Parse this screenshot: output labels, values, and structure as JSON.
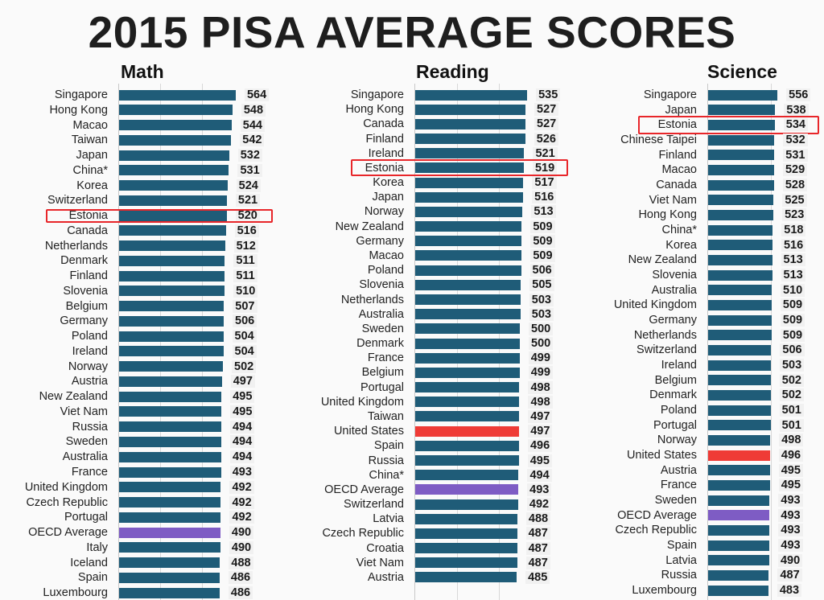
{
  "colors": {
    "bar": "#1f5c78",
    "united_states": "#ef3b36",
    "oecd_average": "#7e5cc4",
    "highlight": "#e8262a"
  },
  "chart_data": [
    {
      "type": "bar",
      "orientation": "horizontal",
      "title": "2015 PISA AVERAGE SCORES",
      "subtitle": "Math",
      "highlight": "Estonia",
      "categories": [
        "Singapore",
        "Hong Kong",
        "Macao",
        "Taiwan",
        "Japan",
        "China*",
        "Korea",
        "Switzerland",
        "Estonia",
        "Canada",
        "Netherlands",
        "Denmark",
        "Finland",
        "Slovenia",
        "Belgium",
        "Germany",
        "Poland",
        "Ireland",
        "Norway",
        "Austria",
        "New Zealand",
        "Viet Nam",
        "Russia",
        "Sweden",
        "Australia",
        "France",
        "United Kingdom",
        "Czech Republic",
        "Portugal",
        "OECD Average",
        "Italy",
        "Iceland",
        "Spain",
        "Luxembourg"
      ],
      "values": [
        564,
        548,
        544,
        542,
        532,
        531,
        524,
        521,
        520,
        516,
        512,
        511,
        511,
        510,
        507,
        506,
        504,
        504,
        502,
        497,
        495,
        495,
        494,
        494,
        494,
        493,
        492,
        492,
        492,
        490,
        490,
        488,
        486,
        486
      ],
      "xlim": [
        0,
        600
      ],
      "grid": true
    },
    {
      "type": "bar",
      "orientation": "horizontal",
      "subtitle": "Reading",
      "highlight": "Estonia",
      "categories": [
        "Singapore",
        "Hong Kong",
        "Canada",
        "Finland",
        "Ireland",
        "Estonia",
        "Korea",
        "Japan",
        "Norway",
        "New Zealand",
        "Germany",
        "Macao",
        "Poland",
        "Slovenia",
        "Netherlands",
        "Australia",
        "Sweden",
        "Denmark",
        "France",
        "Belgium",
        "Portugal",
        "United Kingdom",
        "Taiwan",
        "United States",
        "Spain",
        "Russia",
        "China*",
        "OECD Average",
        "Switzerland",
        "Latvia",
        "Czech Republic",
        "Croatia",
        "Viet Nam",
        "Austria"
      ],
      "values": [
        535,
        527,
        527,
        526,
        521,
        519,
        517,
        516,
        513,
        509,
        509,
        509,
        506,
        505,
        503,
        503,
        500,
        500,
        499,
        499,
        498,
        498,
        497,
        497,
        496,
        495,
        494,
        493,
        492,
        488,
        487,
        487,
        487,
        485
      ],
      "xlim": [
        0,
        600
      ],
      "grid": true
    },
    {
      "type": "bar",
      "orientation": "horizontal",
      "subtitle": "Science",
      "highlight": "Estonia",
      "categories": [
        "Singapore",
        "Japan",
        "Estonia",
        "Chinese Taipei",
        "Finland",
        "Macao",
        "Canada",
        "Viet Nam",
        "Hong Kong",
        "China*",
        "Korea",
        "New Zealand",
        "Slovenia",
        "Australia",
        "United Kingdom",
        "Germany",
        "Netherlands",
        "Switzerland",
        "Ireland",
        "Belgium",
        "Denmark",
        "Poland",
        "Portugal",
        "Norway",
        "United States",
        "Austria",
        "France",
        "Sweden",
        "OECD Average",
        "Czech Republic",
        "Spain",
        "Latvia",
        "Russia",
        "Luxembourg"
      ],
      "values": [
        556,
        538,
        534,
        532,
        531,
        529,
        528,
        525,
        523,
        518,
        516,
        513,
        513,
        510,
        509,
        509,
        509,
        506,
        503,
        502,
        502,
        501,
        501,
        498,
        496,
        495,
        495,
        493,
        493,
        493,
        493,
        490,
        487,
        483
      ],
      "xlim": [
        0,
        600
      ],
      "grid": true
    }
  ]
}
